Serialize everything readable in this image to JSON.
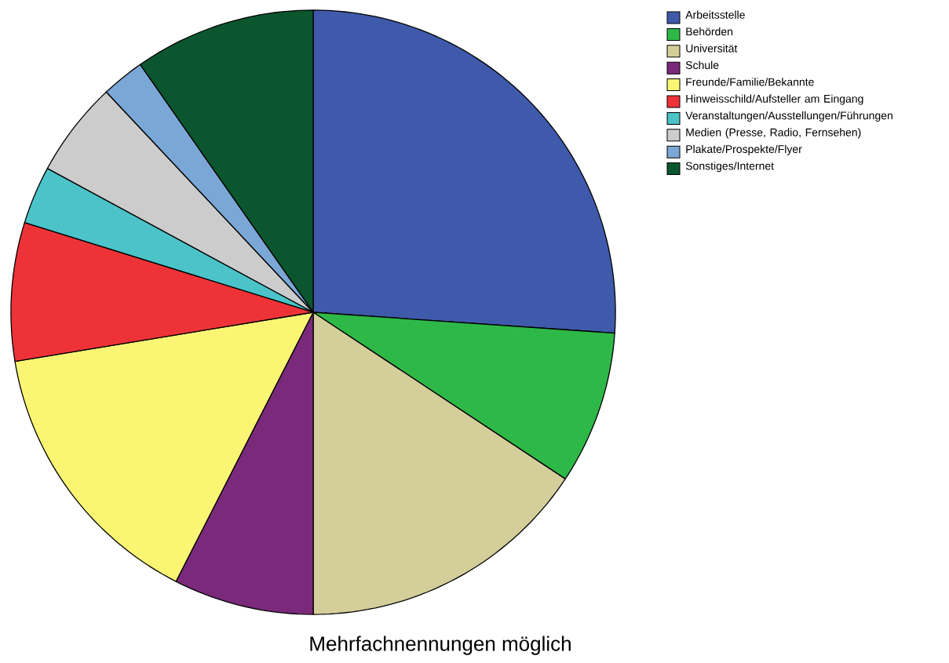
{
  "chart_data": {
    "type": "pie",
    "categories": [
      "Arbeitsstelle",
      "Behörden",
      "Universität",
      "Schule",
      "Freunde/Familie/Bekannte",
      "Hinweisschild/Aufsteller am Eingang",
      "Veranstaltungen/Ausstellungen/Führungen",
      "Medien (Presse, Radio, Fernsehen)",
      "Plakate/Prospekte/Flyer",
      "Sonstiges/Internet"
    ],
    "values": [
      26.1,
      8.2,
      15.7,
      7.5,
      14.9,
      7.4,
      3.1,
      5.1,
      2.3,
      9.7
    ],
    "colors": [
      "#3f5aab",
      "#2eb848",
      "#d4ce9a",
      "#7b2a7b",
      "#faf674",
      "#ee3338",
      "#4bc3c8",
      "#cccccc",
      "#7aa7d6",
      "#0b562e"
    ],
    "legend": "top right",
    "annotations": [
      "Mehrfachnennungen möglich"
    ]
  }
}
